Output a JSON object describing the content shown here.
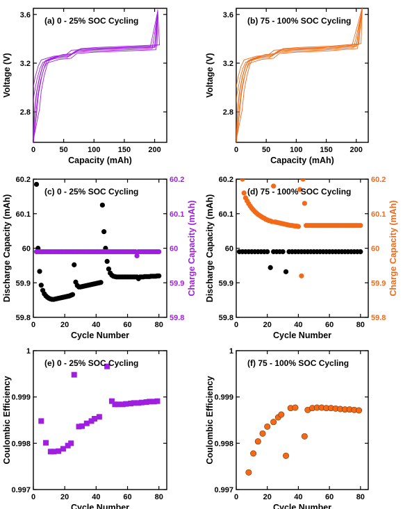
{
  "colors": {
    "purple": "#9f1fe0",
    "orange": "#f26a17",
    "black": "#000000"
  },
  "chart_data": [
    {
      "id": "a",
      "type": "line",
      "title": "(a) 0 - 25% SOC Cycling",
      "xlabel": "Capacity (mAh)",
      "ylabel": "Voltage (V)",
      "xlim": [
        0,
        220
      ],
      "ylim": [
        2.55,
        3.65
      ],
      "xticks": [
        "0",
        "50",
        "100",
        "150",
        "200"
      ],
      "yticks": [
        "2.8",
        "3.2",
        "3.6"
      ],
      "color": "purple",
      "x": [
        0,
        2,
        5,
        10,
        15,
        20,
        40,
        60,
        70,
        100,
        150,
        200,
        205
      ],
      "y": [
        2.55,
        2.8,
        2.95,
        3.08,
        3.17,
        3.22,
        3.25,
        3.26,
        3.3,
        3.31,
        3.32,
        3.33,
        3.62
      ]
    },
    {
      "id": "b",
      "type": "line",
      "title": "(b) 75 - 100% SOC Cycling",
      "xlabel": "Capacity (mAh)",
      "ylabel": "Voltage (V)",
      "xlim": [
        0,
        220
      ],
      "ylim": [
        2.55,
        3.65
      ],
      "xticks": [
        "0",
        "50",
        "100",
        "150",
        "200"
      ],
      "yticks": [
        "2.8",
        "3.2",
        "3.6"
      ],
      "color": "orange",
      "x": [
        0,
        2,
        5,
        10,
        15,
        20,
        40,
        60,
        70,
        100,
        150,
        200,
        210
      ],
      "y": [
        2.55,
        2.8,
        2.95,
        3.08,
        3.17,
        3.22,
        3.25,
        3.26,
        3.3,
        3.31,
        3.32,
        3.34,
        3.65
      ]
    },
    {
      "id": "c",
      "type": "scatter",
      "title": "(c) 0 - 25% SOC Cycling",
      "xlabel": "Cycle Number",
      "ylabel": "Discharge Capacity (mAh)",
      "y2label": "Charge Capacity (mAh)",
      "xlim": [
        0,
        85
      ],
      "ylim": [
        59.8,
        60.2
      ],
      "y2lim": [
        59.8,
        60.2
      ],
      "xticks": [
        "0",
        "20",
        "40",
        "60",
        "80"
      ],
      "yticks": [
        "59.8",
        "59.9",
        "60",
        "60.1",
        "60.2"
      ],
      "y2ticks": [
        "59.8",
        "59.9",
        "60",
        "60.1",
        "60.2"
      ],
      "series": [
        {
          "name": "Discharge",
          "axis": "left",
          "color": "black",
          "x": [
            2,
            3,
            4,
            5,
            6,
            7,
            8,
            9,
            10,
            11,
            12,
            13,
            14,
            15,
            16,
            17,
            18,
            19,
            20,
            21,
            22,
            23,
            24,
            25,
            26,
            27,
            28,
            29,
            30,
            31,
            32,
            33,
            34,
            35,
            36,
            37,
            38,
            39,
            40,
            41,
            42,
            43,
            44,
            45,
            46,
            47,
            48,
            49,
            50,
            51,
            52,
            53,
            54,
            55,
            56,
            57,
            58,
            59,
            60,
            61,
            62,
            63,
            64,
            65,
            66,
            67,
            68,
            69,
            70,
            71,
            72,
            73,
            74,
            75,
            76,
            77,
            78,
            79,
            80
          ],
          "y": [
            60.185,
            60.0,
            59.933,
            59.893,
            59.878,
            59.868,
            59.862,
            59.858,
            59.855,
            59.853,
            59.852,
            59.852,
            59.853,
            59.854,
            59.855,
            59.856,
            59.857,
            59.858,
            59.859,
            59.86,
            59.861,
            59.862,
            59.864,
            59.866,
            59.952,
            59.902,
            59.892,
            59.888,
            59.888,
            59.889,
            59.89,
            59.891,
            59.892,
            59.893,
            59.894,
            59.895,
            59.896,
            59.897,
            59.898,
            59.899,
            59.9,
            59.901,
            60.125,
            60.048,
            60.0,
            59.962,
            59.94,
            59.928,
            59.922,
            59.919,
            59.918,
            59.917,
            59.917,
            59.917,
            59.917,
            59.917,
            59.917,
            59.917,
            59.917,
            59.917,
            59.917,
            59.917,
            59.917,
            59.917,
            59.917,
            59.912,
            59.917,
            59.917,
            59.917,
            59.918,
            59.918,
            59.918,
            59.918,
            59.919,
            59.919,
            59.919,
            59.919,
            59.92,
            59.92
          ]
        },
        {
          "name": "Charge",
          "axis": "right",
          "color": "purple",
          "x": [
            2,
            3,
            4,
            5,
            6,
            7,
            8,
            9,
            10,
            11,
            12,
            13,
            14,
            15,
            16,
            17,
            18,
            19,
            20,
            21,
            22,
            23,
            24,
            25,
            26,
            27,
            28,
            29,
            30,
            31,
            32,
            33,
            34,
            35,
            36,
            37,
            38,
            39,
            40,
            41,
            42,
            43,
            44,
            45,
            46,
            47,
            48,
            49,
            50,
            51,
            52,
            53,
            54,
            55,
            56,
            57,
            58,
            59,
            60,
            61,
            62,
            63,
            64,
            65,
            66,
            67,
            68,
            69,
            70,
            71,
            72,
            73,
            74,
            75,
            76,
            77,
            78,
            79,
            80
          ],
          "y": [
            59.99,
            59.99,
            59.99,
            59.99,
            59.99,
            59.99,
            59.99,
            59.99,
            59.99,
            59.99,
            59.99,
            59.99,
            59.99,
            59.99,
            59.99,
            59.99,
            59.99,
            59.99,
            59.99,
            59.99,
            59.99,
            59.99,
            59.99,
            59.99,
            59.99,
            59.99,
            59.99,
            59.99,
            59.99,
            59.99,
            59.99,
            59.99,
            59.99,
            59.99,
            59.99,
            59.99,
            59.99,
            59.99,
            59.99,
            59.99,
            59.99,
            59.99,
            59.99,
            59.99,
            59.99,
            59.99,
            59.99,
            59.99,
            59.99,
            59.99,
            59.99,
            59.99,
            59.99,
            59.99,
            59.99,
            59.99,
            59.99,
            59.99,
            59.99,
            59.99,
            59.99,
            59.99,
            59.99,
            59.99,
            59.978,
            59.99,
            59.99,
            59.99,
            59.99,
            59.99,
            59.99,
            59.99,
            59.99,
            59.99,
            59.99,
            59.99,
            59.99,
            59.99,
            59.99
          ]
        }
      ]
    },
    {
      "id": "d",
      "type": "scatter",
      "title": "(d) 75 - 100% SOC Cycling",
      "xlabel": "Cycle Number",
      "ylabel": "Discharge Capacity (mAh)",
      "y2label": "Charge Capacity (mAh)",
      "xlim": [
        0,
        85
      ],
      "ylim": [
        59.8,
        60.2
      ],
      "y2lim": [
        59.8,
        60.2
      ],
      "xticks": [
        "0",
        "20",
        "40",
        "60",
        "80"
      ],
      "yticks": [
        "59.8",
        "59.9",
        "60",
        "60.1",
        "60.2"
      ],
      "y2ticks": [
        "59.8",
        "59.9",
        "60",
        "60.1",
        "60.2"
      ],
      "series": [
        {
          "name": "Discharge",
          "axis": "left",
          "color": "black",
          "x": [
            2,
            4,
            6,
            8,
            10,
            12,
            14,
            16,
            18,
            20,
            22,
            24,
            26,
            28,
            30,
            32,
            34,
            36,
            38,
            40,
            42,
            44,
            46,
            48,
            50,
            52,
            54,
            56,
            58,
            60,
            62,
            64,
            66,
            68,
            70,
            72,
            74,
            76,
            78,
            80
          ],
          "y": [
            59.99,
            59.99,
            59.99,
            59.99,
            59.99,
            59.99,
            59.99,
            59.99,
            59.99,
            59.99,
            59.944,
            59.99,
            59.99,
            59.99,
            59.99,
            59.932,
            59.99,
            59.99,
            59.99,
            59.99,
            59.99,
            59.99,
            59.99,
            59.99,
            59.99,
            59.99,
            59.99,
            59.99,
            59.99,
            59.99,
            59.99,
            59.99,
            59.99,
            59.99,
            59.99,
            59.99,
            59.99,
            59.99,
            59.99,
            59.99
          ]
        },
        {
          "name": "Charge",
          "axis": "right",
          "color": "orange",
          "x": [
            4,
            5,
            6,
            7,
            8,
            9,
            10,
            11,
            12,
            13,
            14,
            15,
            16,
            17,
            18,
            19,
            20,
            21,
            22,
            23,
            24,
            25,
            26,
            27,
            28,
            29,
            30,
            31,
            32,
            33,
            34,
            35,
            36,
            37,
            38,
            39,
            40,
            41,
            42,
            43,
            44,
            45,
            46,
            47,
            48,
            49,
            50,
            51,
            52,
            53,
            54,
            55,
            56,
            57,
            58,
            59,
            60,
            61,
            62,
            63,
            64,
            65,
            66,
            67,
            68,
            69,
            70,
            71,
            72,
            73,
            74,
            75,
            76,
            77,
            78,
            79,
            80
          ],
          "y": [
            60.2,
            60.16,
            60.146,
            60.137,
            60.129,
            60.122,
            60.116,
            60.111,
            60.106,
            60.102,
            60.098,
            60.095,
            60.092,
            60.089,
            60.087,
            60.084,
            60.082,
            60.08,
            60.079,
            60.077,
            60.18,
            60.076,
            60.075,
            60.074,
            60.073,
            60.072,
            60.071,
            60.07,
            60.069,
            60.068,
            60.067,
            60.066,
            60.066,
            60.065,
            60.064,
            60.064,
            60.063,
            60.17,
            59.92,
            60.2,
            60.13,
            60.066,
            60.066,
            60.066,
            60.066,
            60.066,
            60.066,
            60.066,
            60.066,
            60.066,
            60.066,
            60.066,
            60.066,
            60.066,
            60.066,
            60.066,
            60.066,
            60.066,
            60.066,
            60.066,
            60.066,
            60.066,
            60.066,
            60.066,
            60.066,
            60.066,
            60.066,
            60.066,
            60.066,
            60.066,
            60.066,
            60.066,
            60.066,
            60.066,
            60.066,
            60.066,
            60.066
          ]
        }
      ]
    },
    {
      "id": "e",
      "type": "scatter",
      "title": "(e) 0 - 25% SOC Cycling",
      "xlabel": "Cycle Number",
      "ylabel": "Coulombic Efficiency",
      "xlim": [
        0,
        85
      ],
      "ylim": [
        0.997,
        1.0
      ],
      "xticks": [
        "0",
        "20",
        "40",
        "60",
        "80"
      ],
      "yticks": [
        "0.997",
        "0.998",
        "0.999",
        "1"
      ],
      "marker": "square",
      "color": "purple",
      "x": [
        5,
        8,
        11,
        13,
        16,
        19,
        22,
        24,
        26,
        29,
        31,
        34,
        37,
        39,
        42,
        47,
        50,
        52,
        54,
        57,
        59,
        62,
        64,
        67,
        69,
        72,
        74,
        77,
        79
      ],
      "y": [
        0.99848,
        0.99801,
        0.99782,
        0.99782,
        0.99783,
        0.99788,
        0.99795,
        0.998,
        0.99948,
        0.99836,
        0.99837,
        0.99843,
        0.99848,
        0.99853,
        0.99857,
        0.99966,
        0.99891,
        0.99884,
        0.99884,
        0.99884,
        0.99885,
        0.99886,
        0.99887,
        0.99887,
        0.99888,
        0.99889,
        0.9989,
        0.9989,
        0.99891
      ]
    },
    {
      "id": "f",
      "type": "scatter",
      "title": "(f) 75 - 100% SOC Cycling",
      "xlabel": "Cycle Number",
      "ylabel": "Coulombic Efficiency",
      "xlim": [
        0,
        85
      ],
      "ylim": [
        0.997,
        1.0
      ],
      "xticks": [
        "0",
        "20",
        "40",
        "60",
        "80"
      ],
      "yticks": [
        "0.997",
        "0.998",
        "0.999",
        "1"
      ],
      "marker": "circle",
      "color": "orange",
      "x": [
        8,
        11,
        14,
        17,
        20,
        24,
        27,
        29,
        32,
        35,
        38,
        44,
        46,
        49,
        52,
        55,
        58,
        61,
        64,
        67,
        70,
        73,
        76,
        79
      ],
      "y": [
        0.99737,
        0.99778,
        0.99804,
        0.99821,
        0.99836,
        0.99846,
        0.99856,
        0.99862,
        0.99773,
        0.99876,
        0.99877,
        0.99815,
        0.99872,
        0.99876,
        0.99877,
        0.99877,
        0.99876,
        0.99876,
        0.99875,
        0.99874,
        0.99873,
        0.99873,
        0.99872,
        0.99871
      ]
    }
  ]
}
